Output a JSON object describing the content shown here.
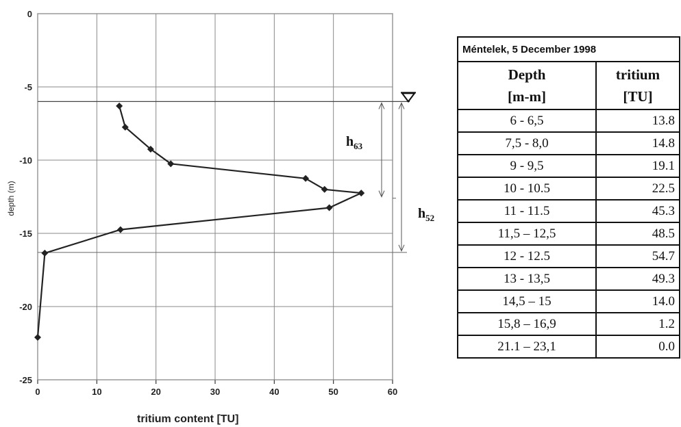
{
  "chart_data": {
    "type": "line",
    "xlabel": "tritium content [TU]",
    "ylabel": "depth (m)",
    "xlim": [
      0,
      60
    ],
    "ylim": [
      -25,
      0
    ],
    "x_ticks": [
      "0",
      "10",
      "20",
      "30",
      "40",
      "50",
      "60"
    ],
    "y_ticks": [
      "0",
      "-5",
      "-10",
      "-15",
      "-20",
      "-25"
    ],
    "grid": true,
    "series": [
      {
        "x": [
          13.8,
          14.8,
          19.1,
          22.5,
          45.3,
          48.5,
          54.7,
          49.3,
          14.0,
          1.2,
          0.0
        ],
        "y": [
          -6.3,
          -7.75,
          -9.25,
          -10.25,
          -11.25,
          -12.0,
          -12.25,
          -13.25,
          -14.75,
          -16.35,
          -22.1
        ]
      }
    ],
    "annotations": [
      {
        "label": "h",
        "sub": "63",
        "from_depth": -6.0,
        "to_depth": -12.6
      },
      {
        "label": "h",
        "sub": "52",
        "from_depth": -6.0,
        "to_depth": -16.3
      }
    ],
    "water_table_symbol": "∇"
  },
  "table": {
    "caption": "Méntelek, 5 December 1998",
    "headers": [
      {
        "line1": "Depth",
        "line2": "[m-m]"
      },
      {
        "line1": "tritium",
        "line2": "[TU]"
      }
    ],
    "rows": [
      {
        "depth": "6 - 6,5",
        "tritium": "13.8"
      },
      {
        "depth": "7,5 - 8,0",
        "tritium": "14.8"
      },
      {
        "depth": "9 - 9,5",
        "tritium": "19.1"
      },
      {
        "depth": "10 - 10.5",
        "tritium": "22.5"
      },
      {
        "depth": "11 - 11.5",
        "tritium": "45.3"
      },
      {
        "depth": "11,5 – 12,5",
        "tritium": "48.5"
      },
      {
        "depth": "12 - 12.5",
        "tritium": "54.7"
      },
      {
        "depth": "13 - 13,5",
        "tritium": "49.3"
      },
      {
        "depth": "14,5 – 15",
        "tritium": "14.0"
      },
      {
        "depth": "15,8 – 16,9",
        "tritium": "1.2"
      },
      {
        "depth": "21.1 – 23,1",
        "tritium": "0.0"
      }
    ]
  }
}
